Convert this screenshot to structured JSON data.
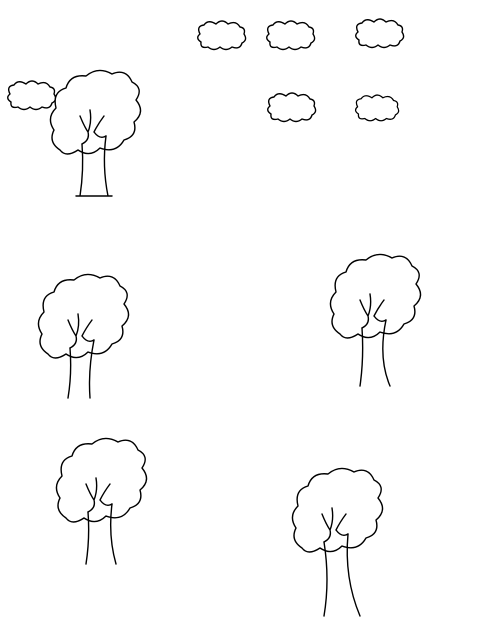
{
  "page": {
    "background": "#ffffff",
    "line_color": "#000000"
  },
  "scene": {
    "description_icons": [
      "cloud-icon",
      "tree-icon"
    ],
    "cloud_count": 6,
    "tree_count": 5
  }
}
